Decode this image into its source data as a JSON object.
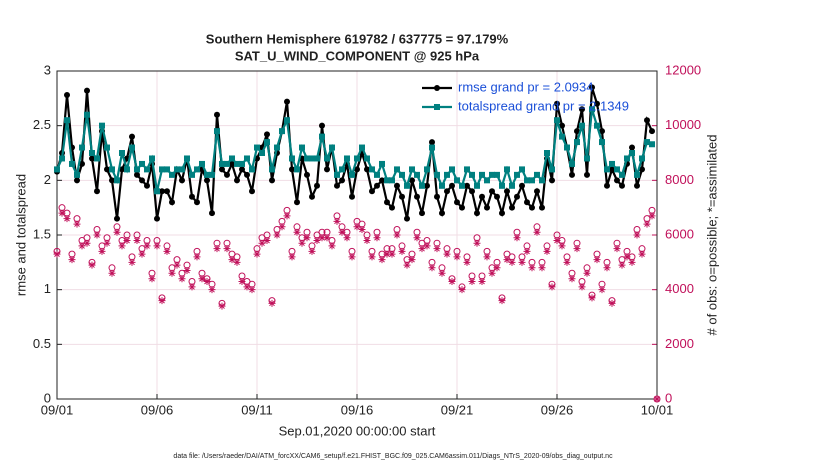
{
  "chart_data": {
    "type": "line",
    "title": "Southern Hemisphere 619782 / 637775 = 97.179%",
    "subtitle": "SAT_U_WIND_COMPONENT @ 925 hPa",
    "x_label": "Sep.01,2020 00:00:00 start",
    "y_label": "rmse and totalspread",
    "y2_label": "# of obs: o=possible; *=assimilated",
    "footnote": "data file: /Users/raeder/DAI/ATM_forcXX/CAM6_setup/f.e21.FHIST_BGC.f09_025.CAM6assim.011/Diags_NTrS_2020-09/obs_diag_output.nc",
    "xlim": [
      0,
      30
    ],
    "xticks": [
      {
        "value": 0,
        "label": "09/01"
      },
      {
        "value": 5,
        "label": "09/06"
      },
      {
        "value": 10,
        "label": "09/11"
      },
      {
        "value": 15,
        "label": "09/16"
      },
      {
        "value": 20,
        "label": "09/21"
      },
      {
        "value": 25,
        "label": "09/26"
      },
      {
        "value": 30,
        "label": "10/01"
      }
    ],
    "ylim": [
      0,
      3
    ],
    "yticks": [
      0,
      0.5,
      1,
      1.5,
      2,
      2.5,
      3
    ],
    "y2lim": [
      0,
      12000
    ],
    "y2ticks": [
      0,
      2000,
      4000,
      6000,
      8000,
      10000,
      12000
    ],
    "y2_color": "#c0105a",
    "grid": true,
    "legend": "upper right",
    "x": [
      0,
      0.25,
      0.5,
      0.75,
      1,
      1.25,
      1.5,
      1.75,
      2,
      2.25,
      2.5,
      2.75,
      3,
      3.25,
      3.5,
      3.75,
      4,
      4.25,
      4.5,
      4.75,
      5,
      5.25,
      5.5,
      5.75,
      6,
      6.25,
      6.5,
      6.75,
      7,
      7.25,
      7.5,
      7.75,
      8,
      8.25,
      8.5,
      8.75,
      9,
      9.25,
      9.5,
      9.75,
      10,
      10.25,
      10.5,
      10.75,
      11,
      11.25,
      11.5,
      11.75,
      12,
      12.25,
      12.5,
      12.75,
      13,
      13.25,
      13.5,
      13.75,
      14,
      14.25,
      14.5,
      14.75,
      15,
      15.25,
      15.5,
      15.75,
      16,
      16.25,
      16.5,
      16.75,
      17,
      17.25,
      17.5,
      17.75,
      18,
      18.25,
      18.5,
      18.75,
      19,
      19.25,
      19.5,
      19.75,
      20,
      20.25,
      20.5,
      20.75,
      21,
      21.25,
      21.5,
      21.75,
      22,
      22.25,
      22.5,
      22.75,
      23,
      23.25,
      23.5,
      23.75,
      24,
      24.25,
      24.5,
      24.75,
      25,
      25.25,
      25.5,
      25.75,
      26,
      26.25,
      26.5,
      26.75,
      27,
      27.25,
      27.5,
      27.75,
      28,
      28.25,
      28.5,
      28.75,
      29,
      29.25,
      29.5,
      29.75,
      30
    ],
    "series": [
      {
        "name": "rmse grand pr = 2.0934",
        "color": "#000000",
        "marker": "circle",
        "values": [
          2.08,
          2.25,
          2.78,
          2.3,
          2.0,
          2.15,
          2.82,
          2.2,
          1.9,
          2.45,
          2.1,
          2.0,
          1.65,
          2.1,
          2.2,
          2.4,
          2.05,
          2.0,
          1.95,
          2.15,
          1.65,
          1.9,
          1.9,
          1.8,
          2.1,
          2.0,
          2.2,
          1.85,
          1.8,
          2.1,
          2.0,
          1.7,
          2.6,
          2.1,
          2.05,
          2.15,
          2.0,
          2.1,
          2.05,
          1.9,
          2.2,
          2.3,
          2.42,
          2.0,
          2.25,
          2.45,
          2.72,
          2.1,
          1.8,
          2.2,
          2.05,
          1.85,
          1.95,
          2.5,
          2.1,
          2.3,
          1.95,
          2.0,
          2.15,
          1.85,
          2.1,
          2.25,
          2.1,
          1.9,
          1.95,
          2.0,
          1.8,
          1.75,
          1.95,
          1.85,
          1.65,
          2.0,
          1.85,
          1.7,
          1.95,
          2.35,
          1.85,
          1.7,
          1.9,
          1.95,
          1.8,
          1.75,
          1.95,
          1.9,
          1.7,
          1.85,
          1.75,
          1.9,
          1.85,
          1.7,
          1.9,
          1.75,
          1.85,
          1.95,
          1.8,
          1.75,
          1.9,
          1.75,
          2.2,
          2.0,
          2.7,
          2.5,
          2.3,
          2.05,
          2.45,
          2.65,
          2.05,
          2.85,
          2.7,
          2.45,
          1.95,
          2.1,
          2.0,
          1.95,
          2.15,
          2.3,
          1.95,
          2.1,
          2.55,
          2.45,
          null
        ]
      },
      {
        "name": "totalspread grand pr = 2.1349",
        "color": "#008080",
        "marker": "square",
        "values": [
          2.1,
          2.2,
          2.55,
          2.15,
          2.05,
          2.3,
          2.6,
          2.25,
          2.2,
          2.5,
          2.3,
          2.1,
          2.0,
          2.25,
          2.1,
          2.3,
          2.1,
          2.15,
          2.1,
          2.2,
          1.9,
          2.1,
          2.1,
          2.05,
          2.1,
          2.1,
          2.2,
          2.05,
          2.1,
          2.15,
          2.05,
          2.05,
          2.45,
          2.15,
          2.15,
          2.2,
          2.15,
          2.15,
          2.2,
          2.1,
          2.3,
          2.25,
          2.35,
          2.1,
          2.3,
          2.45,
          2.55,
          2.2,
          2.1,
          2.3,
          2.2,
          2.2,
          2.2,
          2.4,
          2.2,
          2.3,
          2.05,
          2.1,
          2.2,
          2.05,
          2.2,
          2.3,
          2.2,
          2.1,
          2.05,
          2.15,
          2.0,
          2.0,
          2.1,
          2.05,
          1.95,
          2.1,
          2.05,
          1.95,
          2.1,
          2.3,
          2.05,
          1.95,
          2.05,
          2.1,
          2.0,
          1.95,
          2.1,
          2.05,
          1.95,
          2.05,
          2.0,
          2.05,
          2.05,
          1.95,
          2.1,
          1.95,
          2.05,
          2.1,
          2.0,
          2.0,
          2.05,
          2.0,
          2.25,
          2.1,
          2.55,
          2.4,
          2.3,
          2.15,
          2.35,
          2.5,
          2.2,
          2.65,
          2.5,
          2.35,
          2.1,
          2.15,
          2.1,
          2.05,
          2.2,
          2.25,
          2.05,
          2.2,
          2.35,
          2.33,
          null
        ]
      },
      {
        "name": "possible",
        "color": "#c0105a",
        "marker": "open-circle",
        "axis": "y2",
        "values": [
          5400,
          7000,
          6800,
          5300,
          6600,
          5800,
          5900,
          5000,
          6200,
          5600,
          5900,
          4800,
          6300,
          5800,
          6000,
          5200,
          6000,
          5500,
          5800,
          4600,
          5800,
          3700,
          5600,
          4800,
          5100,
          4600,
          4900,
          4300,
          5400,
          4600,
          4400,
          4200,
          5700,
          3500,
          5700,
          5300,
          5200,
          4500,
          4300,
          4200,
          5500,
          5900,
          6000,
          3600,
          6200,
          6500,
          6900,
          5400,
          6300,
          5900,
          6100,
          5600,
          6000,
          6100,
          6100,
          5800,
          6700,
          6300,
          6100,
          5400,
          6500,
          6400,
          6000,
          5400,
          6100,
          5300,
          5500,
          5500,
          6200,
          5600,
          5100,
          5300,
          6100,
          5700,
          5800,
          5000,
          5700,
          4800,
          5500,
          4400,
          5400,
          4100,
          5200,
          4500,
          5900,
          4500,
          5400,
          4800,
          5000,
          3700,
          5300,
          5200,
          6100,
          5200,
          5600,
          5000,
          6300,
          5000,
          5600,
          4200,
          6000,
          5800,
          5200,
          4600,
          5700,
          4300,
          4800,
          3800,
          5300,
          4200,
          5000,
          3600,
          5700,
          5100,
          5400,
          5200,
          6200,
          5500,
          6600,
          6900,
          0
        ]
      },
      {
        "name": "assimilated",
        "color": "#c0105a",
        "marker": "asterisk",
        "axis": "y2",
        "values": [
          5300,
          6800,
          6600,
          5100,
          6400,
          5600,
          5700,
          4900,
          6000,
          5400,
          5700,
          4600,
          6100,
          5600,
          5800,
          5000,
          5800,
          5300,
          5600,
          4400,
          5600,
          3600,
          5400,
          4600,
          4900,
          4400,
          4700,
          4100,
          5200,
          4400,
          4300,
          4000,
          5500,
          3400,
          5500,
          5100,
          5000,
          4300,
          4100,
          4000,
          5300,
          5700,
          5800,
          3500,
          6000,
          6300,
          6700,
          5200,
          6100,
          5700,
          5900,
          5400,
          5800,
          5900,
          5900,
          5600,
          6500,
          6100,
          5900,
          5200,
          6300,
          6200,
          5800,
          5200,
          5900,
          5100,
          5300,
          5300,
          6000,
          5400,
          4900,
          5100,
          5900,
          5500,
          5600,
          4800,
          5500,
          4600,
          5300,
          4300,
          5200,
          4000,
          5000,
          4300,
          5700,
          4300,
          5200,
          4600,
          4800,
          3600,
          5100,
          5000,
          5900,
          5000,
          5400,
          4800,
          6100,
          4800,
          5400,
          4100,
          5800,
          5600,
          5000,
          4400,
          5500,
          4100,
          4600,
          3700,
          5100,
          4000,
          4800,
          3500,
          5500,
          4900,
          5200,
          5000,
          6000,
          5300,
          6400,
          6700,
          0
        ]
      }
    ]
  }
}
